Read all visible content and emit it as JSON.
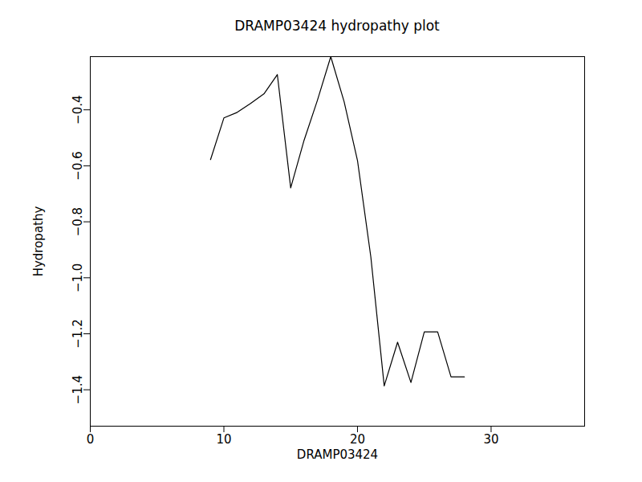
{
  "chart_data": {
    "type": "line",
    "title": "DRAMP03424 hydropathy plot",
    "x_label": "DRAMP03424",
    "y_label": "Hydropathy",
    "x": [
      9,
      10,
      11,
      12,
      13,
      14,
      15,
      16,
      17,
      18,
      19,
      20,
      21,
      22,
      23,
      24,
      25,
      26,
      27,
      28
    ],
    "values": [
      -0.578,
      -0.429,
      -0.409,
      -0.377,
      -0.343,
      -0.274,
      -0.679,
      -0.509,
      -0.366,
      -0.21,
      -0.371,
      -0.581,
      -0.926,
      -1.386,
      -1.23,
      -1.374,
      -1.193,
      -1.193,
      -1.354,
      -1.354
    ],
    "color": "#000000",
    "xlim": [
      0,
      37
    ],
    "xticks": [
      0,
      10,
      20,
      30
    ],
    "ylim": [
      -1.53,
      -0.21
    ],
    "yticks": [
      -1.4,
      -1.2,
      -1.0,
      -0.8,
      -0.6,
      -0.4
    ],
    "grid": false
  }
}
